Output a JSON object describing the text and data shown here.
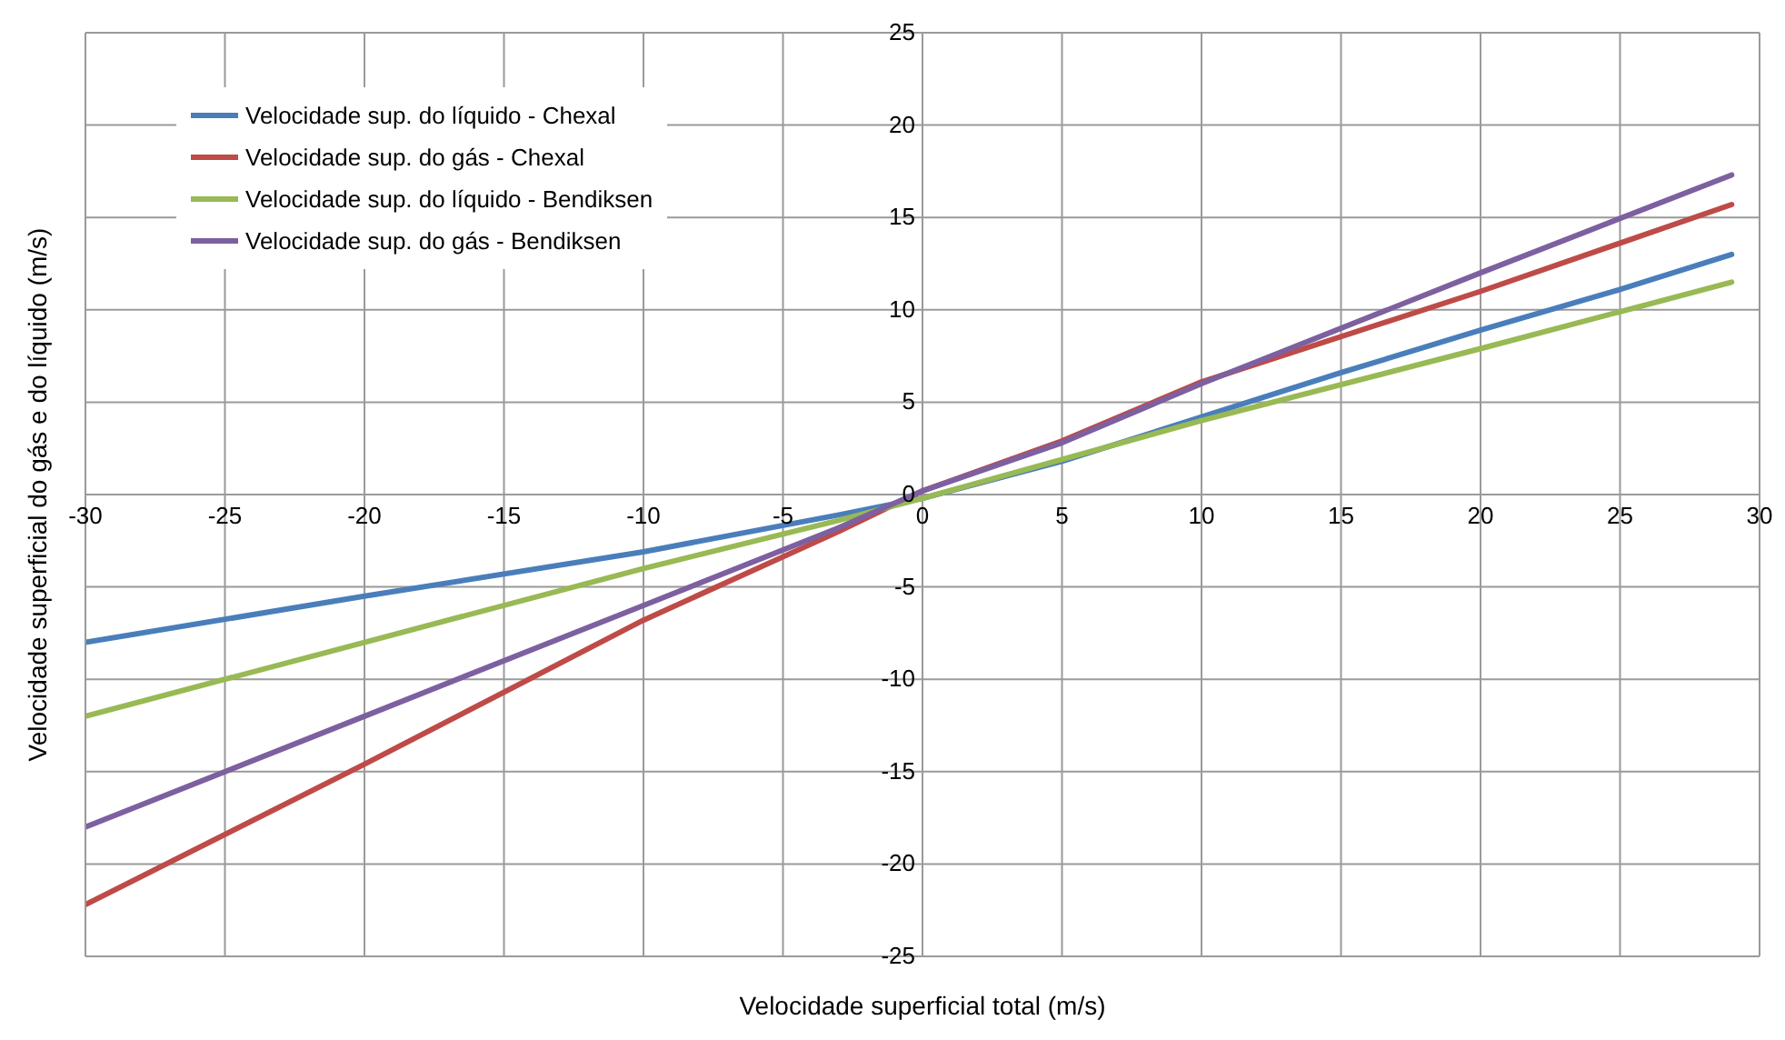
{
  "chart_data": {
    "type": "line",
    "xlabel": "Velocidade superficial total (m/s)",
    "ylabel": "Velocidade superficial do gás e do líquido (m/s)",
    "xlim": [
      -30,
      30
    ],
    "xticks": [
      -30,
      -25,
      -20,
      -15,
      -10,
      -5,
      0,
      5,
      10,
      15,
      20,
      25,
      30
    ],
    "ylim": [
      -25,
      25
    ],
    "yticks": [
      -25,
      -20,
      -15,
      -10,
      -5,
      0,
      5,
      10,
      15,
      20,
      25
    ],
    "grid": true,
    "legend": "top left",
    "marker": "none",
    "line_style": "solid",
    "series": [
      {
        "name": "Velocidade sup. do líquido - Chexal",
        "color": "#4a7ebb",
        "x": [
          -30,
          -20,
          -10,
          -3,
          0,
          5,
          10,
          15,
          20,
          25,
          29
        ],
        "values": [
          -8,
          -5.5,
          -3.1,
          -1.1,
          -0.2,
          1.8,
          4.2,
          6.6,
          8.9,
          11.1,
          13.0
        ]
      },
      {
        "name": "Velocidade sup. do gás - Chexal",
        "color": "#be4b48",
        "x": [
          -30,
          -20,
          -10,
          -3,
          0,
          5,
          10,
          20,
          29
        ],
        "values": [
          -22.2,
          -14.6,
          -6.8,
          -2.0,
          0.2,
          2.9,
          6.1,
          11.0,
          15.7
        ]
      },
      {
        "name": "Velocidade sup. do líquido - Bendiksen",
        "color": "#98b954",
        "x": [
          -30,
          -20,
          -10,
          -3,
          0,
          5,
          10,
          20,
          29
        ],
        "values": [
          -12,
          -8,
          -4,
          -1.4,
          -0.2,
          1.9,
          4.0,
          7.9,
          11.5
        ]
      },
      {
        "name": "Velocidade sup. do gás - Bendiksen",
        "color": "#7d60a0",
        "x": [
          -30,
          -20,
          -10,
          -3,
          0,
          5,
          10,
          20,
          29
        ],
        "values": [
          -18,
          -12,
          -6,
          -1.8,
          0.2,
          2.8,
          6.0,
          12.0,
          17.3
        ]
      }
    ]
  }
}
